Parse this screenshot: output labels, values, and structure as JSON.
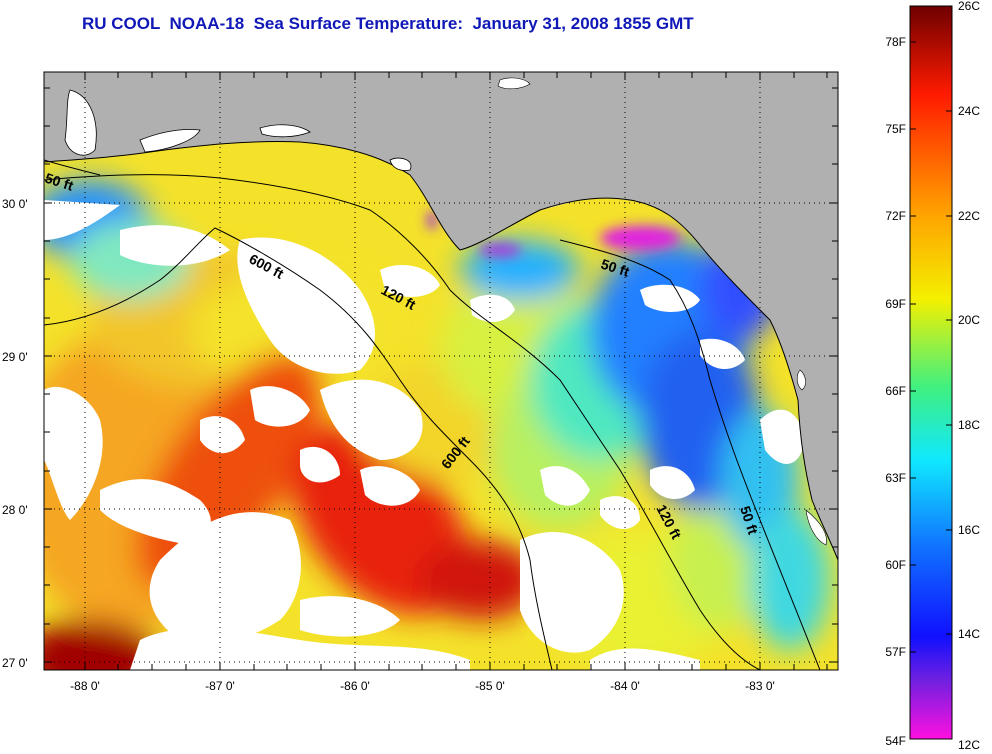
{
  "title": "RU COOL  NOAA-18  Sea Surface Temperature:  January 31, 2008 1855 GMT",
  "map": {
    "lat_labels": [
      "30 0'",
      "29 0'",
      "28 0'",
      "27 0'"
    ],
    "lon_labels": [
      "-88 0'",
      "-87 0'",
      "-86 0'",
      "-85 0'",
      "-84 0'",
      "-83 0'"
    ],
    "contour_labels": {
      "c50_west": "50 ft",
      "c600_north": "600 ft",
      "c120_mid": "120 ft",
      "c50_east": "50 ft",
      "c600_south": "600 ft",
      "c120_south": "120 ft",
      "c50_south": "50 ft"
    },
    "colors": {
      "land": "#b0b0b0",
      "cloud": "#ffffff",
      "coast": "#000000"
    }
  },
  "colorbar": {
    "celsius_labels": [
      "26C",
      "24C",
      "22C",
      "20C",
      "18C",
      "16C",
      "14C",
      "12C"
    ],
    "fahrenheit_labels": [
      "78F",
      "75F",
      "72F",
      "69F",
      "66F",
      "63F",
      "60F",
      "57F",
      "54F"
    ],
    "gradient_stops": [
      "#7a0000",
      "#ff1a00",
      "#ffb000",
      "#f0f000",
      "#10f0ff",
      "#1060ff",
      "#1010ff",
      "#8020e0",
      "#ff10e0"
    ]
  }
}
